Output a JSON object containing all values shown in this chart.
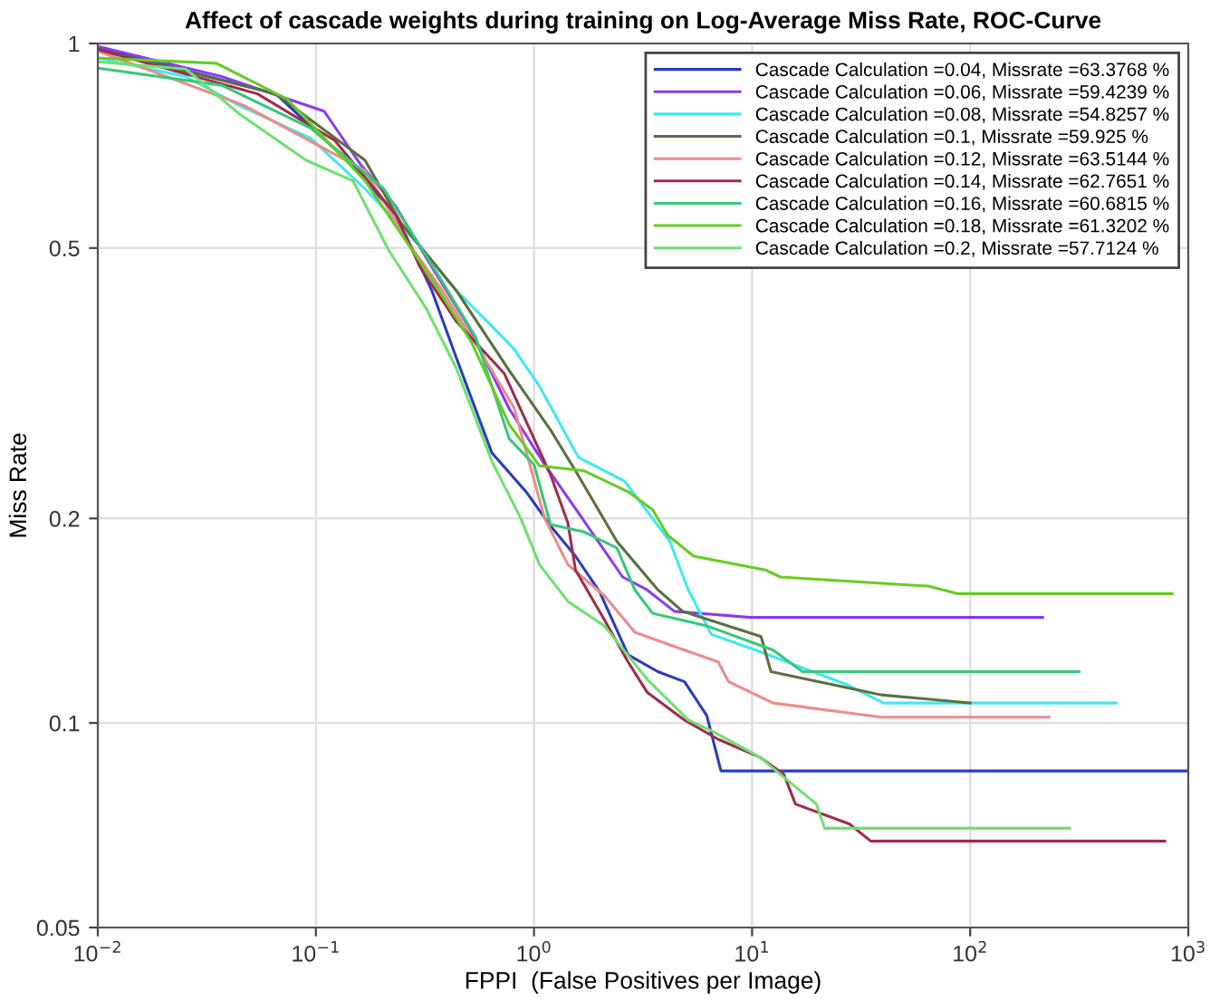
{
  "chart_data": {
    "type": "line",
    "title": "Affect of cascade weights during training on Log-Average Miss Rate, ROC-Curve",
    "xlabel": "FPPI  (False Positives per Image)",
    "ylabel": "Miss Rate",
    "log": "xy",
    "xlim": [
      0.01,
      1000
    ],
    "ylim": [
      0.05,
      1
    ],
    "xticks": [
      {
        "value": 0.01,
        "label": "10$^{−2}$"
      },
      {
        "value": 0.1,
        "label": "10$^{−1}$"
      },
      {
        "value": 1,
        "label": "10$^{0}$"
      },
      {
        "value": 10,
        "label": "10$^{1}$"
      },
      {
        "value": 100,
        "label": "10$^{2}$"
      },
      {
        "value": 1000,
        "label": "10$^{3}$"
      }
    ],
    "yticks": [
      0.05,
      0.1,
      0.2,
      0.5,
      1
    ],
    "grid": true,
    "legend": "top right",
    "marker": "none",
    "line_style": "solid",
    "series": [
      {
        "name": "Cascade Calculation =0.04, Missrate =63.3768 %",
        "color": "#2b3cc0",
        "x": [
          0.01,
          0.0655,
          0.139,
          0.233,
          0.34,
          0.44,
          0.64,
          0.93,
          1.19,
          1.55,
          2.0,
          2.7,
          3.7,
          4.9,
          6.2,
          7.2,
          1000
        ],
        "values": [
          0.985,
          0.843,
          0.673,
          0.559,
          0.433,
          0.345,
          0.25,
          0.218,
          0.195,
          0.176,
          0.156,
          0.126,
          0.119,
          0.115,
          0.1025,
          0.085,
          0.085
        ]
      },
      {
        "name": "Cascade Calculation =0.06, Missrate =59.4239 %",
        "color": "#8b3cf0",
        "x": [
          0.01,
          0.037,
          0.109,
          0.159,
          0.233,
          0.34,
          0.5,
          0.77,
          1.12,
          1.58,
          2.55,
          3.3,
          4.4,
          9.8,
          215
        ],
        "values": [
          0.99,
          0.894,
          0.795,
          0.666,
          0.575,
          0.469,
          0.384,
          0.29,
          0.24,
          0.205,
          0.164,
          0.157,
          0.146,
          0.143,
          0.143
        ]
      },
      {
        "name": "Cascade Calculation =0.08, Missrate =54.8257 %",
        "color": "#40e8f0",
        "x": [
          0.01,
          0.0253,
          0.0447,
          0.095,
          0.168,
          0.3,
          0.44,
          0.64,
          0.81,
          1.06,
          1.6,
          2.6,
          4.2,
          5.1,
          6.5,
          10.4,
          27,
          40,
          468
        ],
        "values": [
          0.952,
          0.894,
          0.81,
          0.725,
          0.611,
          0.503,
          0.433,
          0.384,
          0.355,
          0.313,
          0.246,
          0.227,
          0.185,
          0.157,
          0.135,
          0.128,
          0.114,
          0.107,
          0.107
        ]
      },
      {
        "name": "Cascade Calculation =0.1, Missrate =59.925 %",
        "color": "#5a7040",
        "x": [
          0.01,
          0.0655,
          0.168,
          0.245,
          0.44,
          0.77,
          1.19,
          1.55,
          2.4,
          3.7,
          4.8,
          11,
          12.2,
          39,
          100
        ],
        "values": [
          0.98,
          0.843,
          0.673,
          0.545,
          0.433,
          0.33,
          0.27,
          0.235,
          0.185,
          0.157,
          0.146,
          0.134,
          0.119,
          0.11,
          0.107
        ]
      },
      {
        "name": "Cascade Calculation =0.12, Missrate =63.5144 %",
        "color": "#f08a8a",
        "x": [
          0.01,
          0.047,
          0.168,
          0.28,
          0.38,
          0.56,
          0.81,
          1.12,
          1.43,
          2.1,
          2.9,
          4.9,
          7.0,
          7.8,
          12.5,
          39,
          230
        ],
        "values": [
          0.975,
          0.81,
          0.65,
          0.497,
          0.433,
          0.355,
          0.291,
          0.2,
          0.171,
          0.154,
          0.136,
          0.128,
          0.123,
          0.115,
          0.107,
          0.102,
          0.102
        ]
      },
      {
        "name": "Cascade Calculation =0.14, Missrate =62.7651 %",
        "color": "#a02c50",
        "x": [
          0.01,
          0.054,
          0.122,
          0.233,
          0.3,
          0.44,
          0.73,
          1.19,
          1.43,
          1.55,
          2.1,
          2.7,
          3.3,
          4.9,
          7.0,
          10.9,
          14,
          15.8,
          28,
          35,
          780
        ],
        "values": [
          0.98,
          0.843,
          0.72,
          0.559,
          0.469,
          0.39,
          0.327,
          0.232,
          0.197,
          0.168,
          0.142,
          0.123,
          0.111,
          0.101,
          0.0946,
          0.089,
          0.084,
          0.076,
          0.071,
          0.067,
          0.067
        ]
      },
      {
        "name": "Cascade Calculation =0.16, Missrate =60.6815 %",
        "color": "#38c878",
        "x": [
          0.01,
          0.037,
          0.095,
          0.205,
          0.36,
          0.54,
          0.77,
          1.0,
          1.19,
          1.7,
          2.4,
          2.9,
          3.5,
          6.2,
          12.5,
          17,
          316
        ],
        "values": [
          0.92,
          0.868,
          0.75,
          0.611,
          0.459,
          0.37,
          0.262,
          0.24,
          0.196,
          0.191,
          0.181,
          0.157,
          0.145,
          0.139,
          0.128,
          0.119,
          0.119
        ]
      },
      {
        "name": "Cascade Calculation =0.18, Missrate =61.3202 %",
        "color": "#66cc22",
        "x": [
          0.01,
          0.035,
          0.074,
          0.168,
          0.34,
          0.52,
          0.77,
          1.06,
          1.7,
          2.7,
          3.5,
          4.1,
          5.4,
          11.5,
          13.5,
          64,
          88,
          843
        ],
        "values": [
          0.952,
          0.935,
          0.828,
          0.628,
          0.45,
          0.362,
          0.275,
          0.239,
          0.235,
          0.219,
          0.206,
          0.189,
          0.176,
          0.168,
          0.164,
          0.159,
          0.155,
          0.155
        ]
      },
      {
        "name": "Cascade Calculation =0.2, Missrate =57.7124 %",
        "color": "#70e070",
        "x": [
          0.01,
          0.0253,
          0.0447,
          0.0903,
          0.148,
          0.215,
          0.32,
          0.44,
          0.64,
          0.87,
          1.06,
          1.43,
          2.1,
          3.3,
          5.1,
          6.6,
          10.9,
          12.5,
          19.7,
          21.5,
          286
        ],
        "values": [
          0.94,
          0.917,
          0.787,
          0.673,
          0.628,
          0.497,
          0.408,
          0.333,
          0.243,
          0.2,
          0.171,
          0.151,
          0.139,
          0.116,
          0.101,
          0.0972,
          0.089,
          0.0857,
          0.076,
          0.07,
          0.07
        ]
      }
    ]
  }
}
